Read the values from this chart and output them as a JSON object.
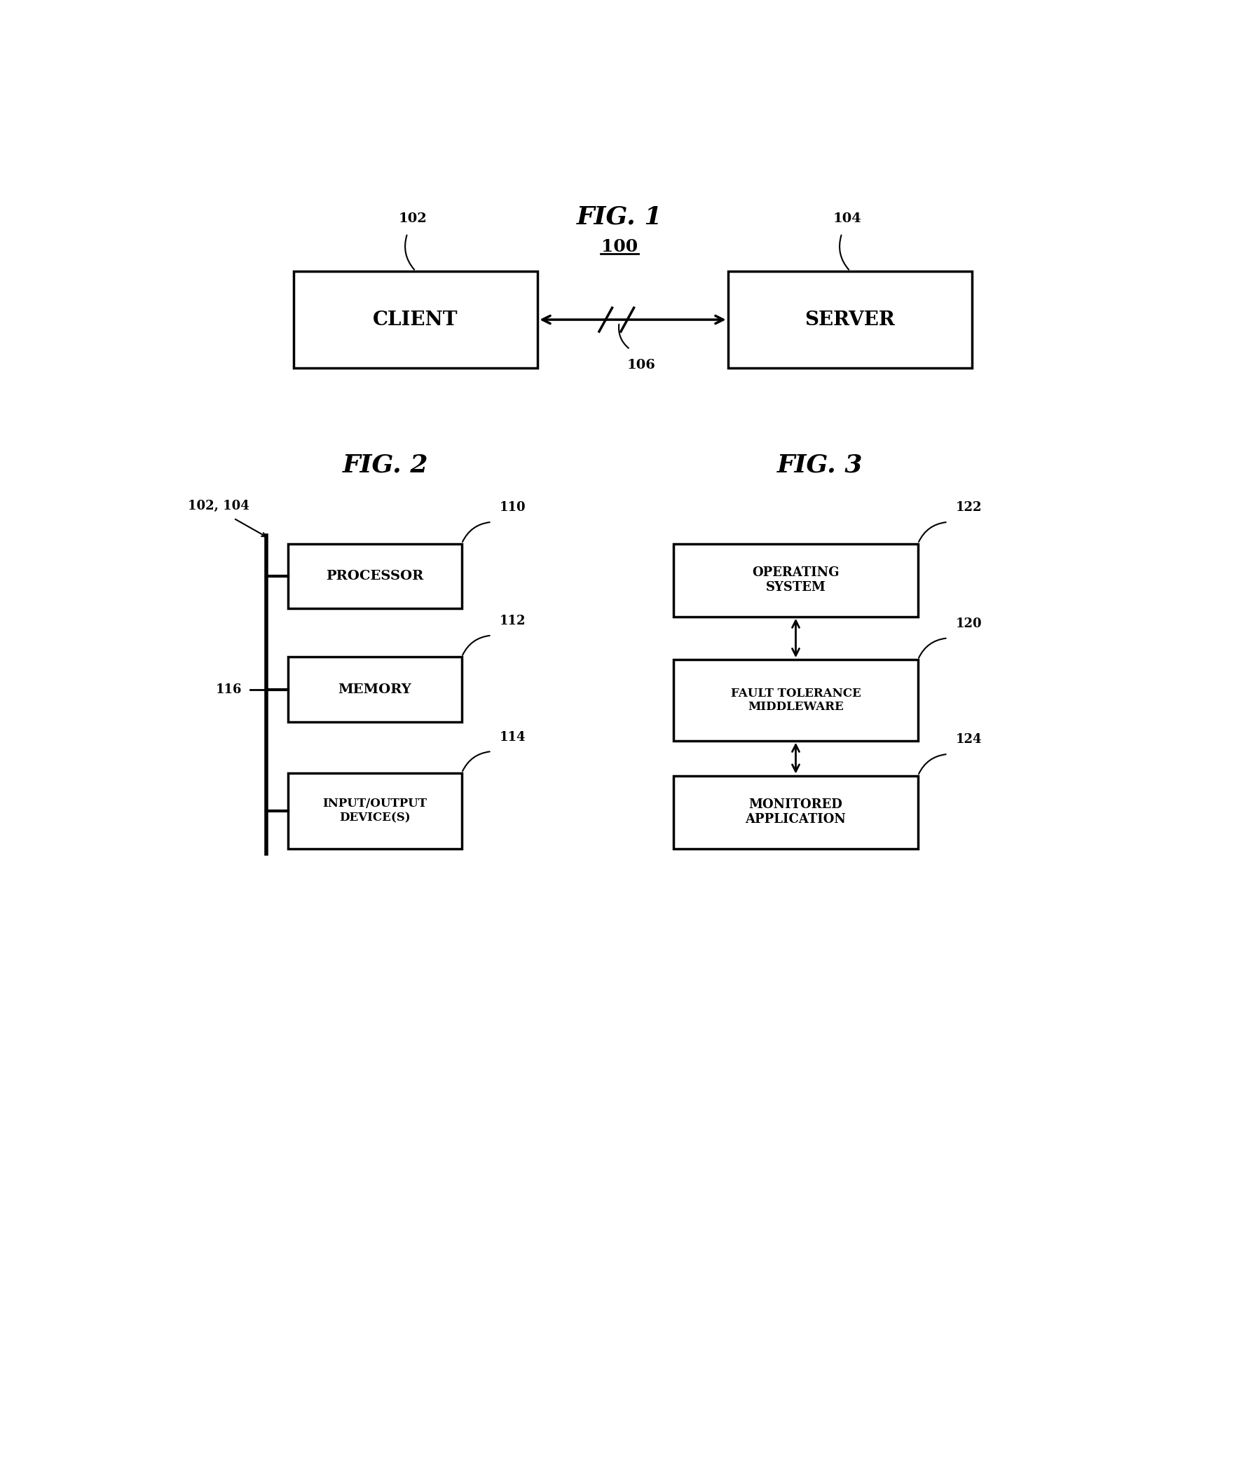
{
  "bg_color": "#ffffff",
  "fig1_title": "FIG. 1",
  "fig2_title": "FIG. 2",
  "fig3_title": "FIG. 3",
  "client_label": "CLIENT",
  "server_label": "SERVER",
  "processor_label": "PROCESSOR",
  "memory_label": "MEMORY",
  "io_label": "INPUT/OUTPUT\nDEVICE(S)",
  "os_label": "OPERATING\nSYSTEM",
  "ftm_label": "FAULT TOLERANCE\nMIDDLEWARE",
  "monitored_label": "MONITORED\nAPPLICATION",
  "ref_100": "100",
  "ref_102": "102",
  "ref_104": "104",
  "ref_106": "106",
  "ref_110": "110",
  "ref_112": "112",
  "ref_114": "114",
  "ref_116": "116",
  "ref_120": "120",
  "ref_122": "122",
  "ref_124": "124",
  "ref_102_104": "102, 104"
}
